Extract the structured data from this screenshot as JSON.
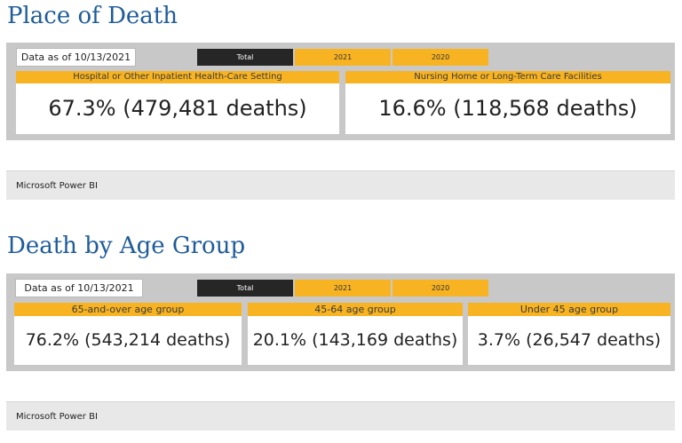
{
  "place_of_death": {
    "title": "Place of Death",
    "data_as_of": "Data as of 10/13/2021",
    "tabs": [
      {
        "label": "Total",
        "active": true
      },
      {
        "label": "2021",
        "active": false
      },
      {
        "label": "2020",
        "active": false
      }
    ],
    "cards": [
      {
        "header": "Hospital or Other Inpatient Health-Care Setting",
        "value": "67.3% (479,481 deaths)"
      },
      {
        "header": "Nursing Home or Long-Term Care Facilities",
        "value": "16.6% (118,568 deaths)"
      }
    ],
    "footer": "Microsoft Power BI"
  },
  "death_by_age_group": {
    "title": "Death by Age Group",
    "data_as_of": "Data as of 10/13/2021",
    "tabs": [
      {
        "label": "Total",
        "active": true
      },
      {
        "label": "2021",
        "active": false
      },
      {
        "label": "2020",
        "active": false
      }
    ],
    "cards": [
      {
        "header": "65-and-over age group",
        "value": "76.2% (543,214 deaths)"
      },
      {
        "header": "45-64 age group",
        "value": "20.1% (143,169 deaths)"
      },
      {
        "header": "Under 45 age group",
        "value": "3.7% (26,547 deaths)"
      }
    ],
    "footer": "Microsoft Power BI"
  },
  "colors": {
    "title": "#1f5c99",
    "tab_active": "#262626",
    "tab_inactive": "#f7b322",
    "card_header": "#f7b322",
    "panel_bg": "#c8c8c8"
  }
}
